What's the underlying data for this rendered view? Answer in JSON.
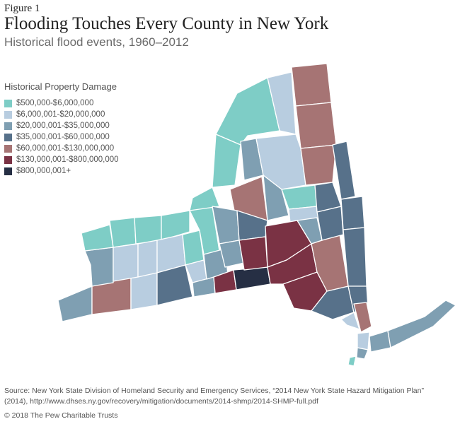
{
  "figure_label": "Figure 1",
  "title": "Flooding Touches Every County in New York",
  "subtitle": "Historical flood events, 1960–2012",
  "legend": {
    "title": "Historical Property Damage",
    "items": [
      {
        "label": "$500,000-$6,000,000",
        "color": "#7ecdc6"
      },
      {
        "label": "$6,000,001-$20,000,000",
        "color": "#b8cde0"
      },
      {
        "label": "$20,000,001-$35,000,000",
        "color": "#7f9fb2"
      },
      {
        "label": "$35,000,001-$60,000,000",
        "color": "#57718a"
      },
      {
        "label": "$60,000,001-$130,000,000",
        "color": "#a67474"
      },
      {
        "label": "$130,000,001-$800,000,000",
        "color": "#7a3244"
      },
      {
        "label": "$800,000,001+",
        "color": "#262f44"
      }
    ]
  },
  "map": {
    "border_color": "#ffffff",
    "region_name": "New York counties"
  },
  "source": {
    "line1": "Source: New York State Division of Homeland Security and Emergency Services, “2014 New York State Hazard Mitigation Plan”",
    "line2": "(2014), http://www.dhses.ny.gov/recovery/mitigation/documents/2014-shmp/2014-SHMP-full.pdf"
  },
  "copyright": "© 2018 The Pew Charitable Trusts"
}
